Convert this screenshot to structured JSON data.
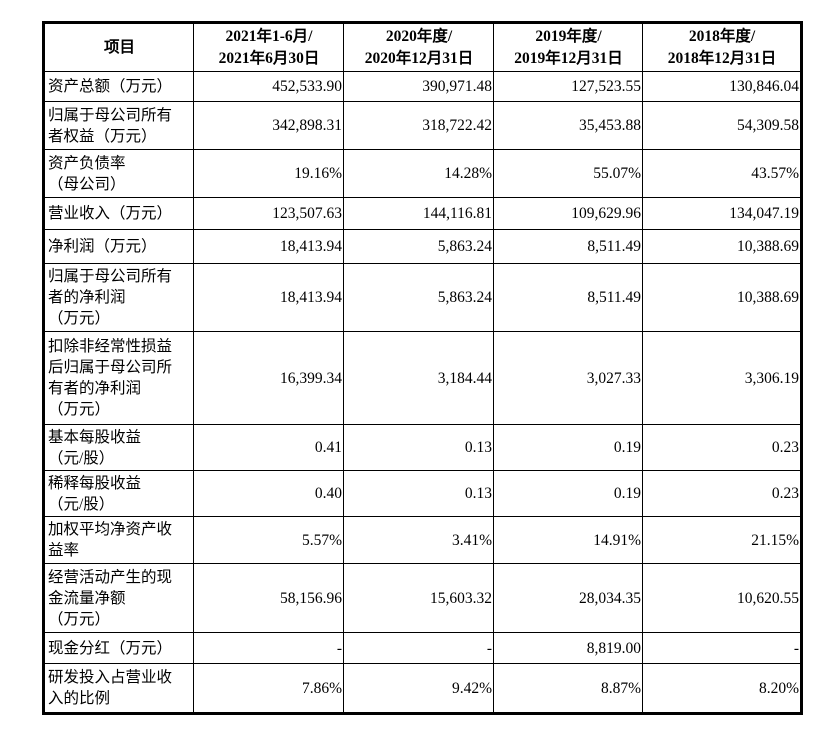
{
  "table": {
    "headers": [
      "项目",
      [
        "2021年1-6月/",
        "2021年6月30日"
      ],
      [
        "2020年度/",
        "2020年12月31日"
      ],
      [
        "2019年度/",
        "2019年12月31日"
      ],
      [
        "2018年度/",
        "2018年12月31日"
      ]
    ],
    "rows": [
      {
        "label": [
          "资产总额（万元）"
        ],
        "values": [
          "452,533.90",
          "390,971.48",
          "127,523.55",
          "130,846.04"
        ]
      },
      {
        "label": [
          "归属于母公司所有",
          "者权益（万元）"
        ],
        "values": [
          "342,898.31",
          "318,722.42",
          "35,453.88",
          "54,309.58"
        ]
      },
      {
        "label": [
          "资产负债率",
          "（母公司）"
        ],
        "values": [
          "19.16%",
          "14.28%",
          "55.07%",
          "43.57%"
        ]
      },
      {
        "label": [
          "营业收入（万元）"
        ],
        "values": [
          "123,507.63",
          "144,116.81",
          "109,629.96",
          "134,047.19"
        ]
      },
      {
        "label": [
          "净利润（万元）"
        ],
        "values": [
          "18,413.94",
          "5,863.24",
          "8,511.49",
          "10,388.69"
        ]
      },
      {
        "label": [
          "归属于母公司所有",
          "者的净利润",
          "（万元）"
        ],
        "values": [
          "18,413.94",
          "5,863.24",
          "8,511.49",
          "10,388.69"
        ]
      },
      {
        "label": [
          "扣除非经常性损益",
          "后归属于母公司所",
          "有者的净利润",
          "（万元）"
        ],
        "values": [
          "16,399.34",
          "3,184.44",
          "3,027.33",
          "3,306.19"
        ]
      },
      {
        "label": [
          "基本每股收益",
          "（元/股）"
        ],
        "values": [
          "0.41",
          "0.13",
          "0.19",
          "0.23"
        ]
      },
      {
        "label": [
          "稀释每股收益",
          "（元/股）"
        ],
        "values": [
          "0.40",
          "0.13",
          "0.19",
          "0.23"
        ]
      },
      {
        "label": [
          "加权平均净资产收",
          "益率"
        ],
        "values": [
          "5.57%",
          "3.41%",
          "14.91%",
          "21.15%"
        ]
      },
      {
        "label": [
          "经营活动产生的现",
          "金流量净额",
          "（万元）"
        ],
        "values": [
          "58,156.96",
          "15,603.32",
          "28,034.35",
          "10,620.55"
        ]
      },
      {
        "label": [
          "现金分红（万元）"
        ],
        "values": [
          "-",
          "-",
          "8,819.00",
          "-"
        ]
      },
      {
        "label": [
          "研发投入占营业收",
          "入的比例"
        ],
        "values": [
          "7.86%",
          "9.42%",
          "8.87%",
          "8.20%"
        ]
      }
    ]
  }
}
